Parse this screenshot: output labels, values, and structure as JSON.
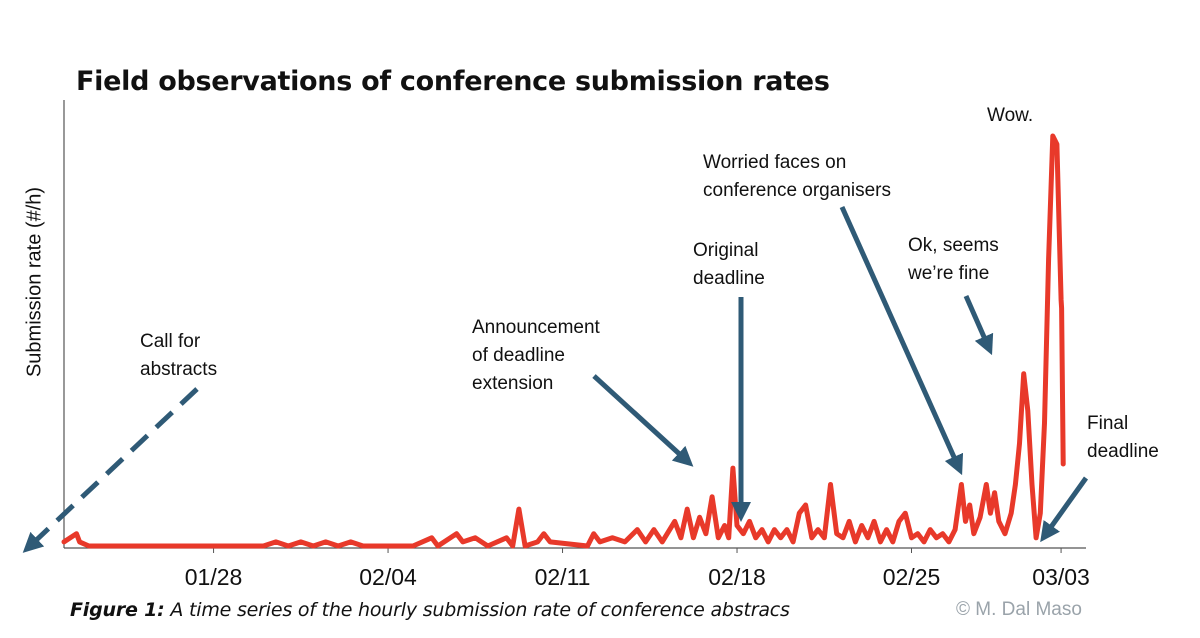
{
  "chart_data": {
    "type": "line",
    "title": "Field observations of conference submission rates",
    "ylabel": "Submission rate (#/h)",
    "xlabel": "",
    "x_ticks": [
      "01/28",
      "02/04",
      "02/11",
      "02/18",
      "02/25",
      "03/03"
    ],
    "xlim": [
      "01/22",
      "03/04"
    ],
    "ylim": [
      0,
      100
    ],
    "y_ticks_shown": false,
    "series": [
      {
        "color": "#e8392a",
        "points": [
          [
            "01/22 00:00",
            1
          ],
          [
            "01/22 12:00",
            3
          ],
          [
            "01/22 15:00",
            1
          ],
          [
            "01/23",
            0
          ],
          [
            "01/30",
            0
          ],
          [
            "01/30 12:00",
            1
          ],
          [
            "01/31",
            0
          ],
          [
            "01/31 12:00",
            1
          ],
          [
            "02/01",
            0
          ],
          [
            "02/01 12:00",
            1
          ],
          [
            "02/02",
            0
          ],
          [
            "02/02 12:00",
            1
          ],
          [
            "02/03",
            0
          ],
          [
            "02/05",
            0
          ],
          [
            "02/05 18:00",
            2
          ],
          [
            "02/06",
            0
          ],
          [
            "02/06 18:00",
            3
          ],
          [
            "02/07",
            1
          ],
          [
            "02/07 12:00",
            2
          ],
          [
            "02/08",
            0
          ],
          [
            "02/08 18:00",
            2
          ],
          [
            "02/09",
            0
          ],
          [
            "02/09 06:00",
            9
          ],
          [
            "02/09 12:00",
            0
          ],
          [
            "02/10",
            1
          ],
          [
            "02/10 06:00",
            3
          ],
          [
            "02/10 12:00",
            1
          ],
          [
            "02/12",
            0
          ],
          [
            "02/12 06:00",
            3
          ],
          [
            "02/12 12:00",
            1
          ],
          [
            "02/13",
            2
          ],
          [
            "02/13 12:00",
            1
          ],
          [
            "02/14",
            4
          ],
          [
            "02/14 08:00",
            1
          ],
          [
            "02/14 16:00",
            4
          ],
          [
            "02/15",
            1
          ],
          [
            "02/15 12:00",
            6
          ],
          [
            "02/15 18:00",
            2
          ],
          [
            "02/16",
            9
          ],
          [
            "02/16 06:00",
            2
          ],
          [
            "02/16 12:00",
            7
          ],
          [
            "02/16 18:00",
            3
          ],
          [
            "02/17",
            12
          ],
          [
            "02/17 06:00",
            2
          ],
          [
            "02/17 12:00",
            5
          ],
          [
            "02/17 16:00",
            2
          ],
          [
            "02/17 20:00",
            19
          ],
          [
            "02/18 00:00",
            5
          ],
          [
            "02/18 06:00",
            3
          ],
          [
            "02/18 12:00",
            6
          ],
          [
            "02/18 18:00",
            2
          ],
          [
            "02/19",
            4
          ],
          [
            "02/19 06:00",
            1
          ],
          [
            "02/19 12:00",
            4
          ],
          [
            "02/19 18:00",
            2
          ],
          [
            "02/20",
            4
          ],
          [
            "02/20 06:00",
            1
          ],
          [
            "02/20 12:00",
            8
          ],
          [
            "02/20 18:00",
            10
          ],
          [
            "02/21",
            2
          ],
          [
            "02/21 06:00",
            4
          ],
          [
            "02/21 12:00",
            2
          ],
          [
            "02/21 18:00",
            15
          ],
          [
            "02/22",
            3
          ],
          [
            "02/22 06:00",
            2
          ],
          [
            "02/22 12:00",
            6
          ],
          [
            "02/22 18:00",
            1
          ],
          [
            "02/23",
            5
          ],
          [
            "02/23 06:00",
            2
          ],
          [
            "02/23 12:00",
            6
          ],
          [
            "02/23 18:00",
            1
          ],
          [
            "02/24",
            4
          ],
          [
            "02/24 06:00",
            1
          ],
          [
            "02/24 12:00",
            6
          ],
          [
            "02/24 18:00",
            8
          ],
          [
            "02/25",
            2
          ],
          [
            "02/25 06:00",
            3
          ],
          [
            "02/25 12:00",
            1
          ],
          [
            "02/25 18:00",
            4
          ],
          [
            "02/26",
            2
          ],
          [
            "02/26 06:00",
            3
          ],
          [
            "02/26 12:00",
            1
          ],
          [
            "02/26 18:00",
            4
          ],
          [
            "02/27",
            15
          ],
          [
            "02/27 04:00",
            6
          ],
          [
            "02/27 08:00",
            10
          ],
          [
            "02/27 12:00",
            3
          ],
          [
            "02/27 18:00",
            7
          ],
          [
            "02/28",
            15
          ],
          [
            "02/28 04:00",
            8
          ],
          [
            "02/28 08:00",
            13
          ],
          [
            "02/28 12:00",
            6
          ],
          [
            "02/28 18:00",
            3
          ],
          [
            "03/01",
            8
          ],
          [
            "03/01 04:00",
            15
          ],
          [
            "03/01 08:00",
            25
          ],
          [
            "03/01 12:00",
            42
          ],
          [
            "03/01 16:00",
            33
          ],
          [
            "03/01 20:00",
            15
          ],
          [
            "03/02",
            2
          ],
          [
            "03/02 04:00",
            8
          ],
          [
            "03/02 08:00",
            30
          ],
          [
            "03/02 12:00",
            70
          ],
          [
            "03/02 16:00",
            100
          ],
          [
            "03/02 20:00",
            98
          ],
          [
            "03/03",
            60
          ],
          [
            "03/03 00:30",
            58
          ],
          [
            "03/03 02:00",
            20
          ]
        ]
      }
    ],
    "annotations": [
      {
        "text": "Call for abstracts",
        "target": "01/22",
        "arrow": "dashed"
      },
      {
        "text": "Announcement of deadline extension",
        "target": "02/17"
      },
      {
        "text": "Original deadline",
        "target": "02/18"
      },
      {
        "text": "Worried faces on conference organisers",
        "target": "02/26"
      },
      {
        "text": "Ok, seems we’re fine",
        "target": "03/01"
      },
      {
        "text": "Wow.",
        "target": "03/02"
      },
      {
        "text": "Final deadline",
        "target": "03/03"
      }
    ]
  },
  "labels": {
    "caption_bold": "Figure 1:",
    "caption_rest": " A time series of the hourly submission rate of conference abstracs",
    "copyright": "© M. Dal Maso"
  },
  "colors": {
    "line": "#e8392a",
    "arrow": "#2f5a76",
    "axis": "#555555"
  }
}
